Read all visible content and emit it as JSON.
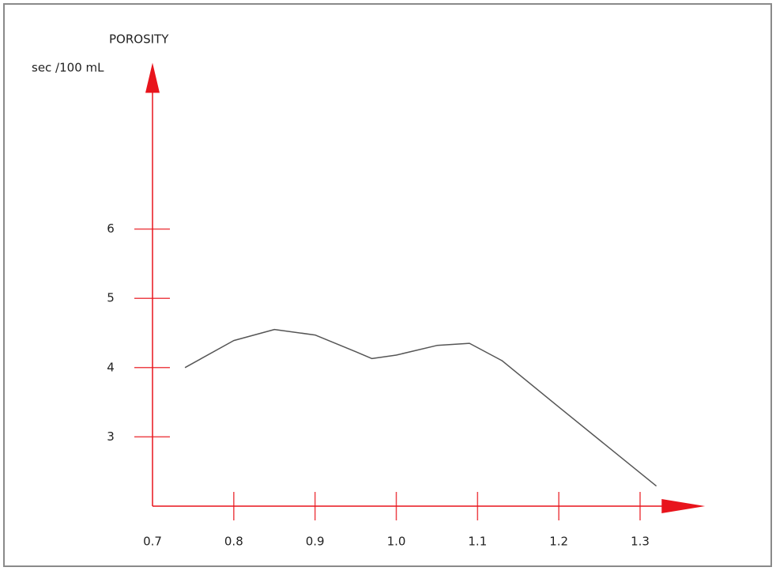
{
  "chart_data": {
    "type": "line",
    "y_label": "POROSITY",
    "y_unit": "sec /100 mL",
    "x": [
      0.74,
      0.8,
      0.85,
      0.9,
      0.95,
      0.97,
      1.0,
      1.05,
      1.09,
      1.13,
      1.2,
      1.32
    ],
    "values": [
      4.0,
      4.39,
      4.55,
      4.47,
      4.23,
      4.13,
      4.18,
      4.32,
      4.35,
      4.1,
      3.43,
      2.29
    ],
    "color": "#555555",
    "axis_color": "#e8141c",
    "xlim": [
      0.7,
      1.38
    ],
    "ylim": [
      2,
      8.4
    ],
    "xticks": [
      0.7,
      0.8,
      0.9,
      {
        "value": 1,
        "label": "1.0"
      },
      1.1,
      1.2,
      1.3
    ],
    "yticks": [
      3,
      4,
      5,
      6
    ]
  }
}
